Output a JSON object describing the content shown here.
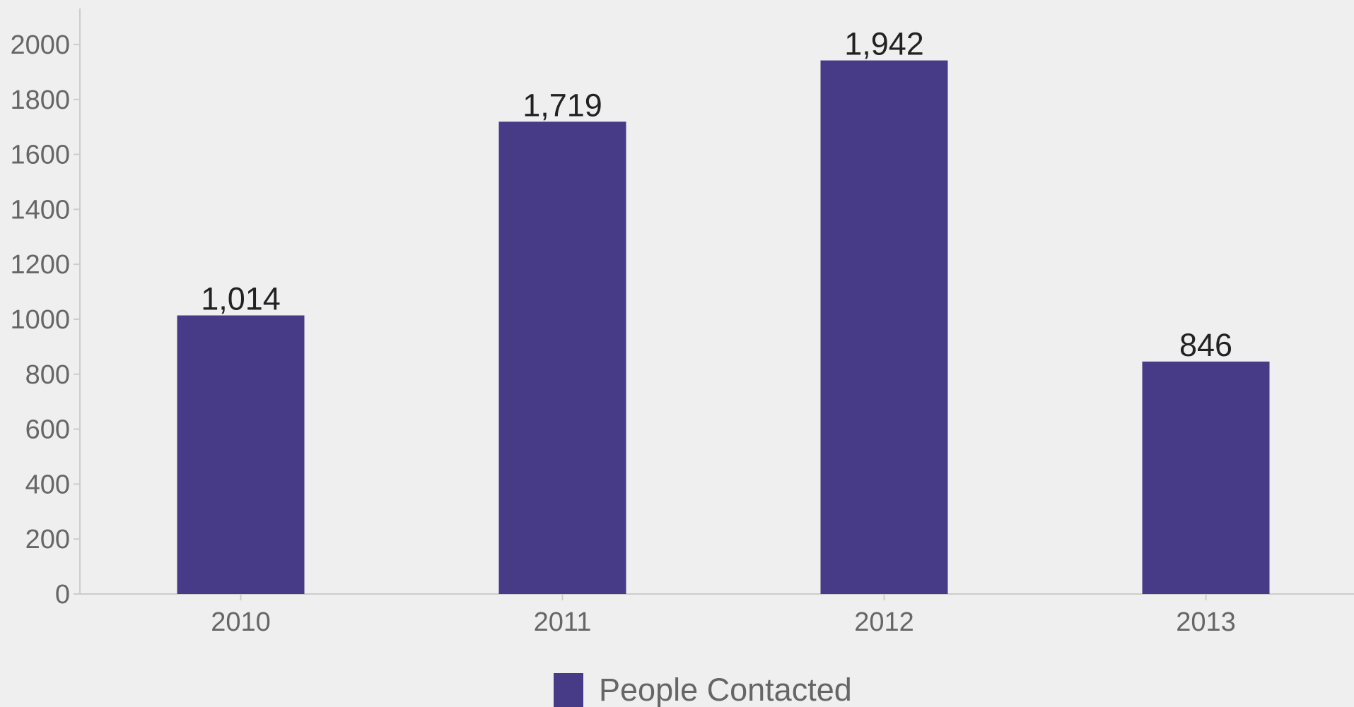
{
  "chart_data": {
    "type": "bar",
    "categories": [
      "2010",
      "2011",
      "2012",
      "2013"
    ],
    "series": [
      {
        "name": "People Contacted",
        "values": [
          1014,
          1719,
          1942,
          846
        ],
        "value_labels": [
          "1,014",
          "1,719",
          "1,942",
          "846"
        ]
      }
    ],
    "y_ticks": [
      "0",
      "200",
      "400",
      "600",
      "800",
      "1000",
      "1200",
      "1400",
      "1600",
      "1800",
      "2000"
    ],
    "ylim": [
      0,
      2000
    ],
    "grid": false,
    "legend_position": "bottom-center",
    "colors": {
      "bar": "#473b88",
      "axis": "#cccccc",
      "background": "#efefef"
    }
  }
}
